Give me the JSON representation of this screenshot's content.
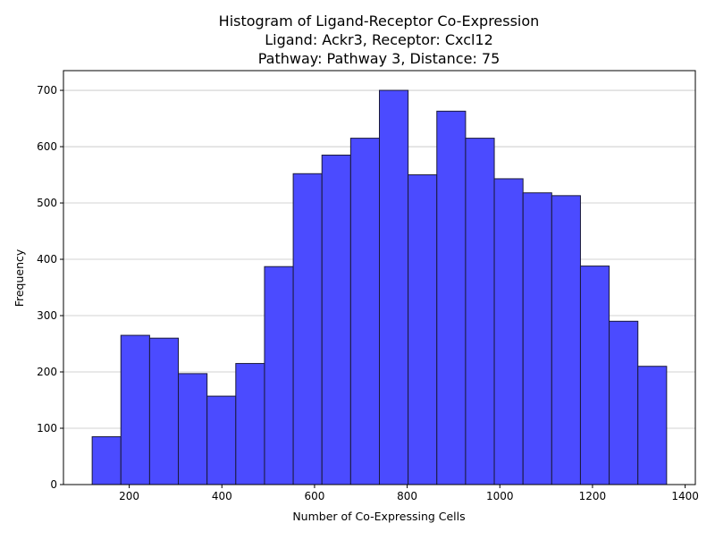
{
  "chart_data": {
    "type": "bar",
    "subtype": "histogram",
    "title_lines": [
      "Histogram of Ligand-Receptor Co-Expression",
      "Ligand: Ackr3, Receptor: Cxcl12",
      "Pathway: Pathway 3, Distance: 75"
    ],
    "xlabel": "Number of Co-Expressing Cells",
    "ylabel": "Frequency",
    "bin_edges": [
      120,
      182,
      244,
      306,
      368,
      430,
      492,
      554,
      616,
      678,
      740,
      802,
      864,
      926,
      988,
      1050,
      1112,
      1174,
      1236,
      1298,
      1360
    ],
    "values": [
      85,
      265,
      260,
      197,
      157,
      215,
      387,
      552,
      585,
      615,
      700,
      550,
      663,
      615,
      543,
      518,
      513,
      388,
      290,
      210
    ],
    "xlim": [
      58,
      1422
    ],
    "ylim": [
      0,
      735
    ],
    "x_ticks": [
      200,
      400,
      600,
      800,
      1000,
      1200,
      1400
    ],
    "y_ticks": [
      0,
      100,
      200,
      300,
      400,
      500,
      600,
      700
    ],
    "grid": "horizontal",
    "colors": {
      "bar_fill": "#4b4bff",
      "bar_edge": "#1a1a3a",
      "grid": "#c4c4c4",
      "axis": "#000000"
    }
  }
}
